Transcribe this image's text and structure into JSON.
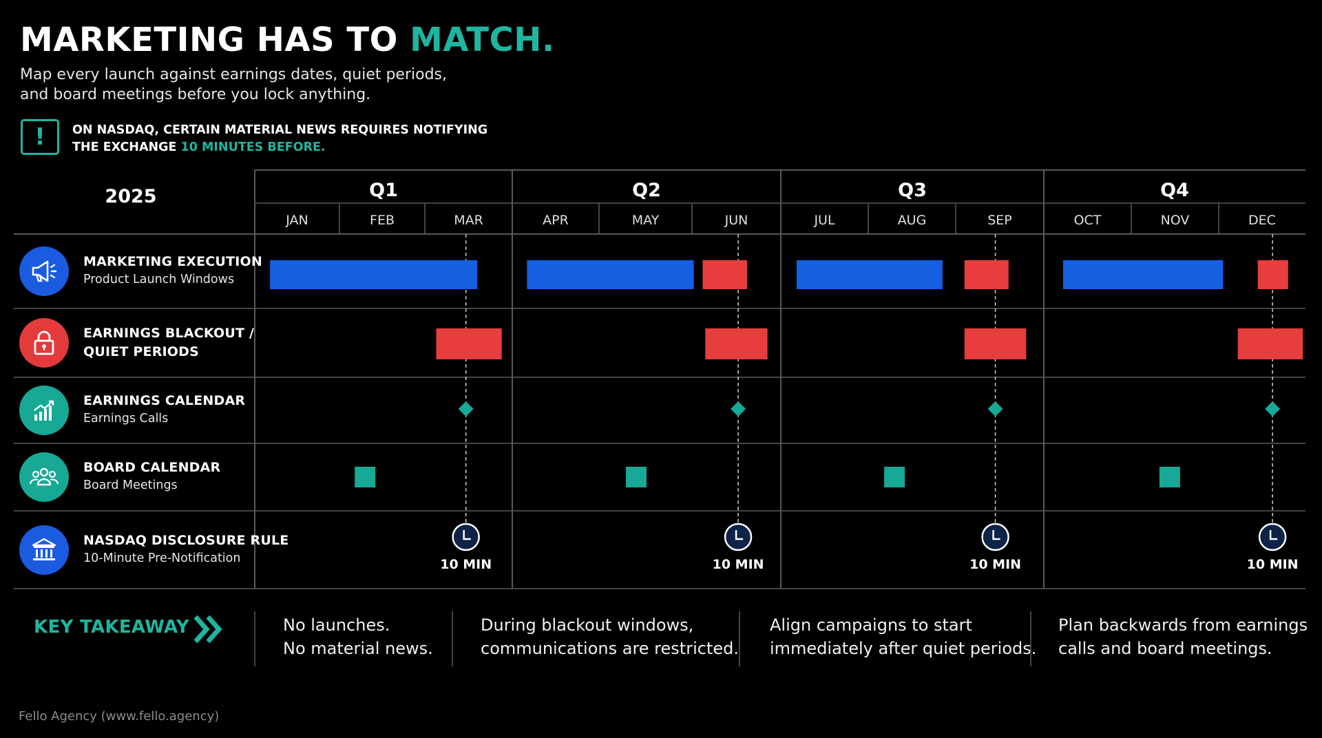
{
  "header": {
    "title_main": "MARKETING HAS TO ",
    "title_accent": "MATCH.",
    "subtitle_line1": "Map every launch against earnings dates, quiet periods,",
    "subtitle_line2": "and board meetings before you lock anything.",
    "alert_icon": "exclamation-icon",
    "alert_line1": "ON NASDAQ, CERTAIN MATERIAL NEWS REQUIRES NOTIFYING",
    "alert_line2_prefix": "THE EXCHANGE ",
    "alert_line2_accent": "10 MINUTES BEFORE."
  },
  "colors": {
    "accent": "#1fb5a0",
    "launch_blue": "#1560e0",
    "blackout_red": "#e83d3d",
    "teal": "#17a896",
    "grid": "#5a5a5a"
  },
  "chart_data": {
    "type": "table",
    "year": "2025",
    "quarters": [
      "Q1",
      "Q2",
      "Q3",
      "Q4"
    ],
    "months": [
      "JAN",
      "FEB",
      "MAR",
      "APR",
      "MAY",
      "JUN",
      "JUL",
      "AUG",
      "SEP",
      "OCT",
      "NOV",
      "DEC"
    ],
    "rows": [
      {
        "title": "MARKETING EXECUTION",
        "subtitle": "Product Launch Windows",
        "icon": "megaphone-icon",
        "color": "#1a5be0"
      },
      {
        "title": "EARNINGS BLACKOUT /",
        "subtitle": "QUIET PERIODS",
        "icon": "lock-icon",
        "color": "#e33b3b"
      },
      {
        "title": "EARNINGS CALENDAR",
        "subtitle": "Earnings Calls",
        "icon": "chart-growth-icon",
        "color": "#17a896"
      },
      {
        "title": "BOARD CALENDAR",
        "subtitle": "Board Meetings",
        "icon": "group-icon",
        "color": "#17a896"
      },
      {
        "title": "NASDAQ DISCLOSURE RULE",
        "subtitle": "10-Minute Pre-Notification",
        "icon": "bank-icon",
        "color": "#1a5be0"
      }
    ],
    "launch_windows": [
      {
        "start": 0.18,
        "end": 2.6
      },
      {
        "start": 3.17,
        "end": 5.02
      },
      {
        "start": 6.18,
        "end": 7.85
      },
      {
        "start": 9.22,
        "end": 11.05
      }
    ],
    "launch_blocked": [
      {
        "start": 5.12,
        "end": 5.62
      },
      {
        "start": 8.1,
        "end": 8.6
      },
      {
        "start": 11.45,
        "end": 11.8
      }
    ],
    "blackout_periods": [
      {
        "start": 2.13,
        "end": 2.88
      },
      {
        "start": 5.15,
        "end": 5.85
      },
      {
        "start": 8.1,
        "end": 8.8
      },
      {
        "start": 11.22,
        "end": 11.97
      }
    ],
    "earnings_calls": [
      2.47,
      5.52,
      8.45,
      11.62
    ],
    "board_meetings": [
      1.3,
      4.4,
      7.3,
      10.44
    ],
    "disclosure_label": "10 MIN",
    "disclosure_marks": [
      2.47,
      5.52,
      8.45,
      11.62
    ]
  },
  "takeaway": {
    "label": "KEY TAKEAWAY",
    "icon": "double-chevron-right-icon",
    "items": [
      {
        "line1": "No launches.",
        "line2": "No material news."
      },
      {
        "line1": "During blackout windows,",
        "line2": "communications are restricted."
      },
      {
        "line1": "Align campaigns to start",
        "line2": "immediately after quiet periods."
      },
      {
        "line1": "Plan backwards from earnings",
        "line2": "calls and board meetings."
      }
    ]
  },
  "footer": {
    "credit": "Fello Agency (www.fello.agency)"
  }
}
